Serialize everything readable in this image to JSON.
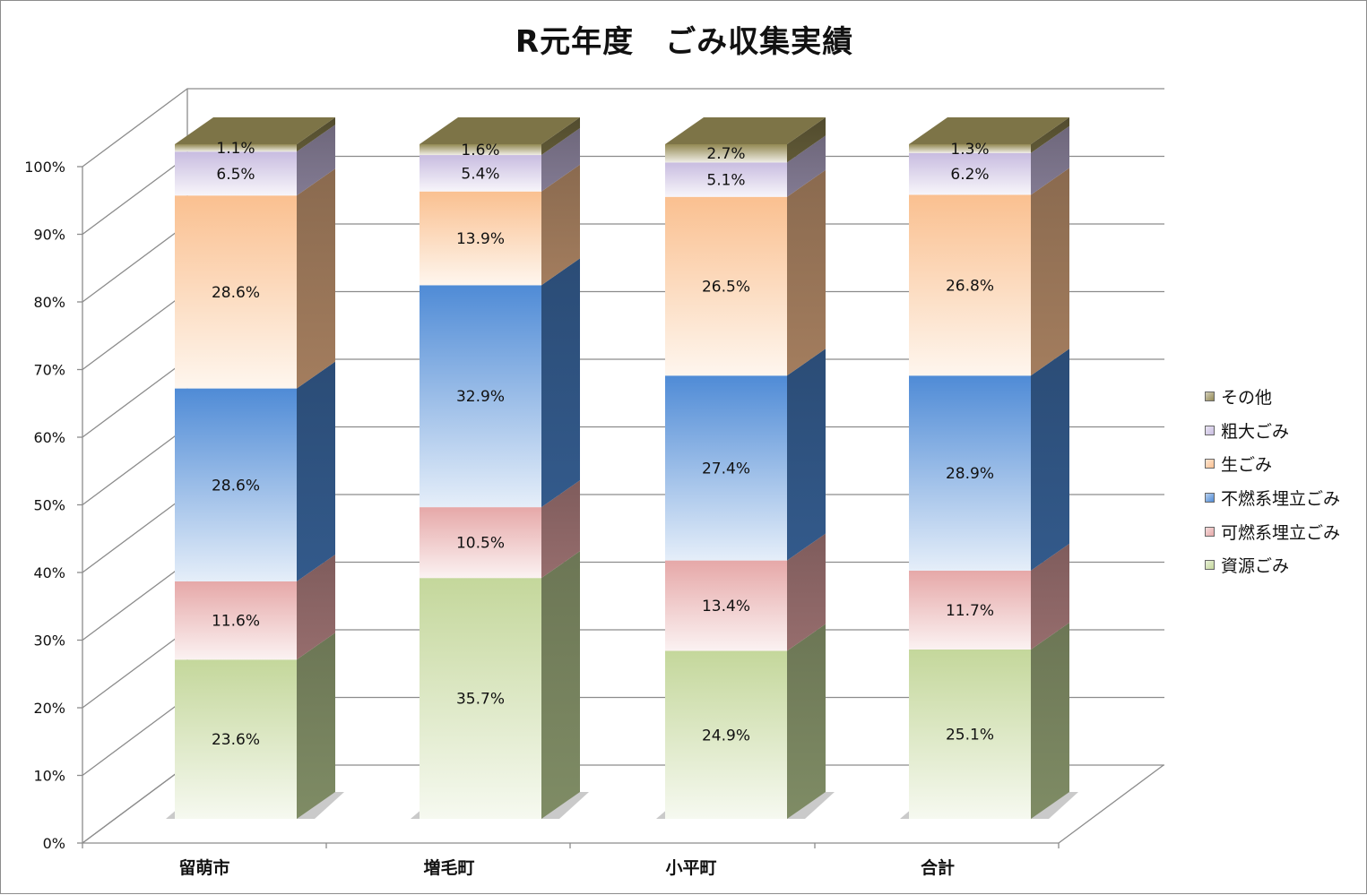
{
  "chart_data": {
    "type": "bar",
    "stacked": "percent",
    "style": "3d-column",
    "title": "R元年度　ごみ収集実績",
    "categories": [
      "留萌市",
      "増毛町",
      "小平町",
      "合計"
    ],
    "series": [
      {
        "name": "資源ごみ",
        "values": [
          23.6,
          35.7,
          24.9,
          25.1
        ],
        "labels": [
          "23.6%",
          "35.7%",
          "24.9%",
          "25.1%"
        ],
        "color": "#c4d79b"
      },
      {
        "name": "可燃系埋立ごみ",
        "values": [
          11.6,
          10.5,
          13.4,
          11.7
        ],
        "labels": [
          "11.6%",
          "10.5%",
          "13.4%",
          "11.7%"
        ],
        "color": "#e6a8a8"
      },
      {
        "name": "不燃系埋立ごみ",
        "values": [
          28.6,
          32.9,
          27.4,
          28.9
        ],
        "labels": [
          "28.6%",
          "32.9%",
          "27.4%",
          "28.9%"
        ],
        "color": "#4f8bd6"
      },
      {
        "name": "生ごみ",
        "values": [
          28.6,
          13.9,
          26.5,
          26.8
        ],
        "labels": [
          "28.6%",
          "13.9%",
          "26.5%",
          "26.8%"
        ],
        "color": "#fac090"
      },
      {
        "name": "粗大ごみ",
        "values": [
          6.5,
          5.4,
          5.1,
          6.2
        ],
        "labels": [
          "6.5%",
          "5.4%",
          "5.1%",
          "6.2%"
        ],
        "color": "#c8bce0"
      },
      {
        "name": "その他",
        "values": [
          1.1,
          1.6,
          2.7,
          1.3
        ],
        "labels": [
          "1.1%",
          "1.6%",
          "2.7%",
          "1.3%"
        ],
        "color": "#938953"
      }
    ],
    "y_ticks": [
      "0%",
      "10%",
      "20%",
      "30%",
      "40%",
      "50%",
      "60%",
      "70%",
      "80%",
      "90%",
      "100%"
    ],
    "ylim": [
      0,
      100
    ],
    "grid": true,
    "legend_position": "right"
  }
}
